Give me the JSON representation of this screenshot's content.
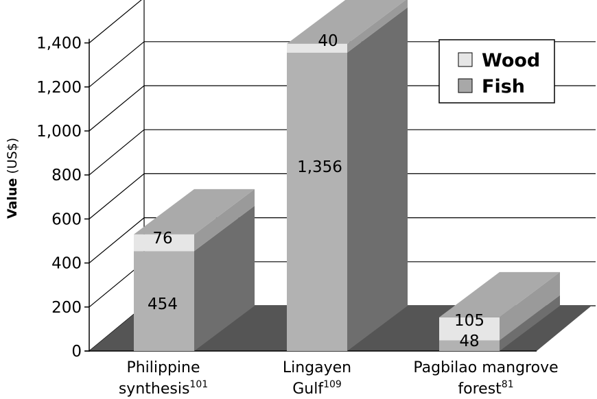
{
  "chart_data": {
    "type": "bar",
    "stacked": true,
    "three_d": true,
    "categories": [
      {
        "line1": "Philippine",
        "line2": "synthesis",
        "sup": "101"
      },
      {
        "line1": "Lingayen",
        "line2": "Gulf",
        "sup": "109"
      },
      {
        "line1": "Pagbilao mangrove",
        "line2": "forest",
        "sup": "81"
      }
    ],
    "series": [
      {
        "name": "Fish",
        "values": [
          454,
          1356,
          48
        ],
        "labels": [
          "454",
          "1,356",
          "48"
        ]
      },
      {
        "name": "Wood",
        "values": [
          76,
          40,
          105
        ],
        "labels": [
          "76",
          "40",
          "105"
        ]
      }
    ],
    "y_axis": {
      "label_bold": "Value",
      "label_rest": " (US$)",
      "min": 0,
      "max": 1400,
      "step": 200,
      "tick_labels": [
        "0",
        "200",
        "400",
        "600",
        "800",
        "1,000",
        "1,200",
        "1,400"
      ]
    },
    "legend": {
      "position": "top-right",
      "order": [
        "Wood",
        "Fish"
      ]
    },
    "grid": true,
    "colors": {
      "fish_front": "#b2b2b2",
      "fish_side": "#6e6e6e",
      "wood_front": "#e6e6e6",
      "wood_side": "#9a9a9a",
      "top": "#aaaaaa",
      "floor": "#555555",
      "legend_wood": "#e6e6e6",
      "legend_fish": "#a8a8a8"
    }
  }
}
